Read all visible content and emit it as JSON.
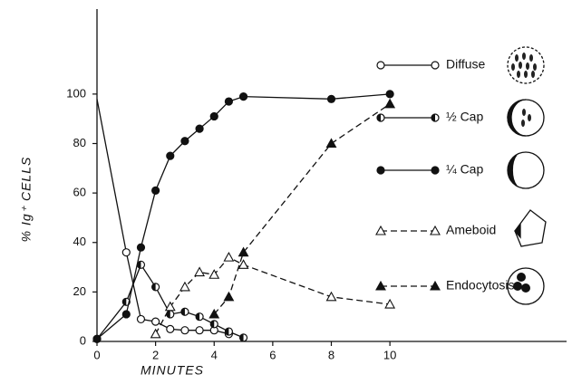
{
  "chart_data": {
    "type": "line",
    "x_label": "MINUTES",
    "y_label": "% Ig⁺ CELLS",
    "xlim": [
      0,
      16
    ],
    "xticks": [
      0,
      2,
      4,
      6,
      8,
      10
    ],
    "ylim": [
      0,
      134
    ],
    "yticks": [
      0,
      20,
      40,
      60,
      80,
      100
    ],
    "series": [
      {
        "name": "Diffuse",
        "color": "#111111",
        "marker": "circle-open",
        "dashed": false,
        "x": [
          0,
          1,
          1.5,
          2,
          2.5,
          3,
          3.5,
          4,
          4.5
        ],
        "values": [
          98,
          36,
          9,
          8,
          5,
          4.5,
          4.5,
          4.5,
          3
        ]
      },
      {
        "name": "½ Cap",
        "color": "#111111",
        "marker": "circle-half",
        "dashed": false,
        "x": [
          0,
          1,
          1.5,
          2,
          2.5,
          3,
          3.5,
          4,
          4.5,
          5
        ],
        "values": [
          1,
          16,
          31,
          22,
          11,
          12,
          10,
          7,
          4,
          1.5
        ]
      },
      {
        "name": "¼ Cap",
        "color": "#111111",
        "marker": "circle-filled",
        "dashed": false,
        "x": [
          0,
          1,
          1.5,
          2,
          2.5,
          3,
          3.5,
          4,
          4.5,
          5,
          8,
          10
        ],
        "values": [
          1,
          11,
          38,
          61,
          75,
          81,
          86,
          91,
          97,
          99,
          98,
          100
        ]
      },
      {
        "name": "Ameboid",
        "color": "#111111",
        "marker": "triangle-open",
        "dashed": true,
        "x": [
          2,
          2.5,
          3,
          3.5,
          4,
          4.5,
          5,
          8,
          10
        ],
        "values": [
          3,
          14,
          22,
          28,
          27,
          34,
          31,
          18,
          15
        ]
      },
      {
        "name": "Endocytosis",
        "color": "#111111",
        "marker": "triangle-filled",
        "dashed": true,
        "x": [
          4,
          4.5,
          5,
          8,
          10
        ],
        "values": [
          11,
          18,
          36,
          80,
          96
        ]
      }
    ]
  }
}
